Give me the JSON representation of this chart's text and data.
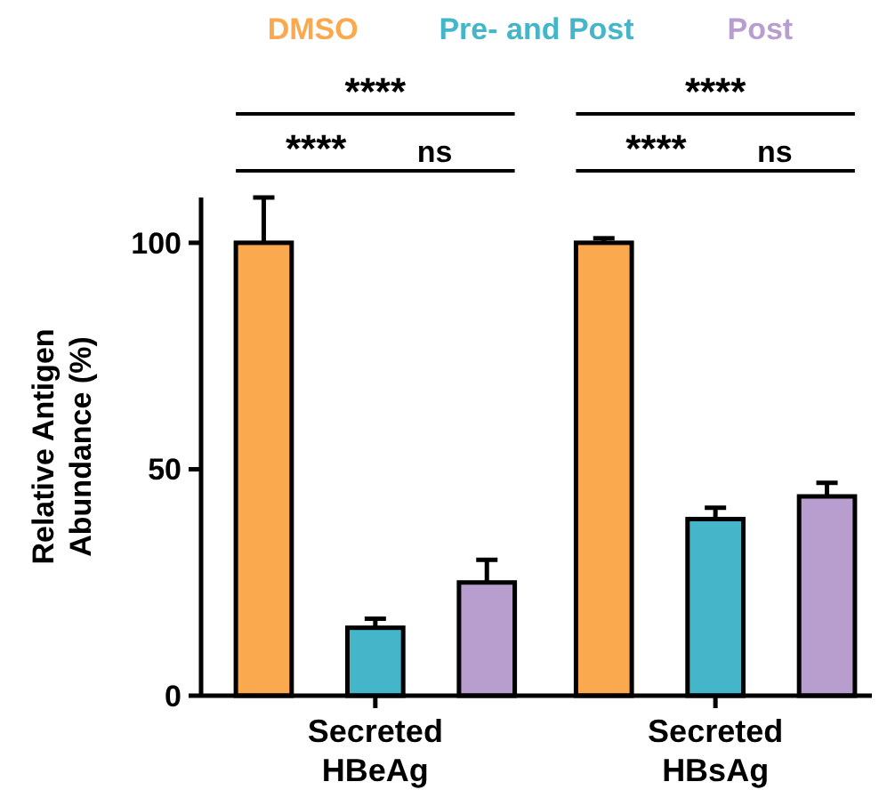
{
  "chart_data": {
    "type": "bar",
    "ylabel": "Relative Antigen Abundance (%)",
    "categories": [
      "Secreted HBeAg",
      "Secreted HBsAg"
    ],
    "series": [
      {
        "name": "DMSO",
        "color": "#fba94f",
        "values": [
          100,
          100
        ],
        "errors": [
          10,
          1
        ]
      },
      {
        "name": "Pre- and Post",
        "color": "#45b5ca",
        "values": [
          15,
          39
        ],
        "errors": [
          2,
          2.5
        ]
      },
      {
        "name": "Post",
        "color": "#b89dcf",
        "values": [
          25,
          44
        ],
        "errors": [
          5,
          3
        ]
      }
    ],
    "ylim": [
      0,
      110
    ],
    "yticks": [
      0,
      50,
      100
    ],
    "grid": false,
    "legend": "top",
    "annotations": [
      "****",
      "****",
      "ns",
      "****",
      "****",
      "ns"
    ]
  }
}
